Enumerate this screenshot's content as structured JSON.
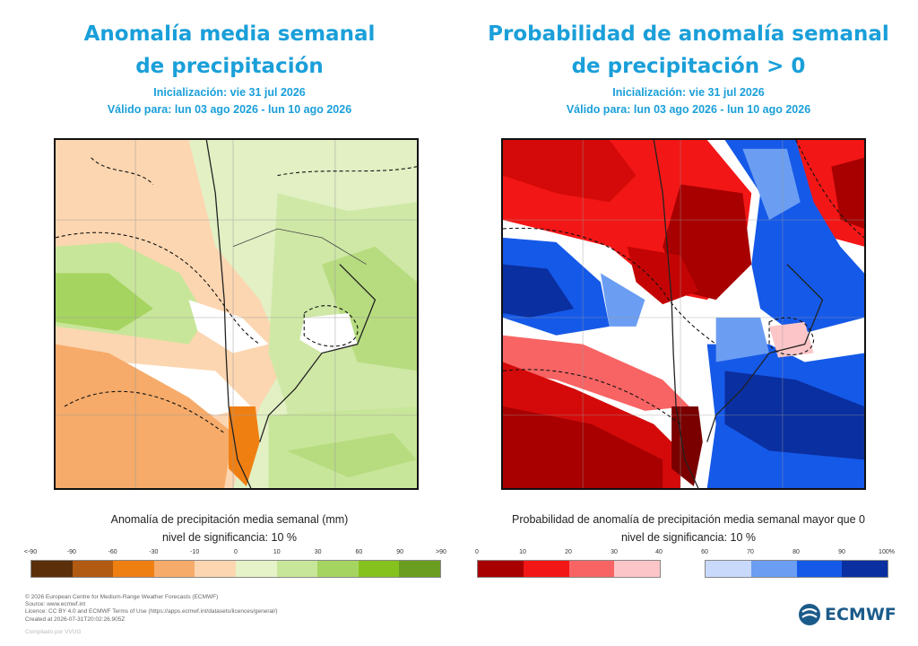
{
  "left": {
    "title_line1": "Anomalía media semanal",
    "title_line2": "de precipitación",
    "init": "Inicialización: vie 31 jul 2026",
    "valid": "Válido para: lun 03 ago 2026 - lun 10 ago 2026",
    "caption": "Anomalía de precipitación media semanal (mm)",
    "significance": "nivel de significancia: 10 %",
    "legend_ticks": [
      "<-90",
      "-90",
      "-60",
      "-30",
      "-10",
      "0",
      "10",
      "30",
      "60",
      "90",
      ">90"
    ],
    "legend_colors": [
      "#5a2f0a",
      "#b05a12",
      "#f07f12",
      "#f6ab6a",
      "#fcd6b0",
      "#e6f2c8",
      "#c8e69a",
      "#a6d460",
      "#86c21e",
      "#6b9e20",
      "#4f7a14"
    ]
  },
  "right": {
    "title_line1": "Probabilidad de anomalía semanal",
    "title_line2": "de precipitación > 0",
    "init": "Inicialización: vie 31 jul 2026",
    "valid": "Válido para: lun 03 ago 2026 - lun 10 ago 2026",
    "caption": "Probabilidad de anomalía de precipitación media semanal mayor que 0",
    "significance": "nivel de significancia: 10 %",
    "legend_ticks": [
      "0",
      "10",
      "20",
      "30",
      "40",
      "60",
      "70",
      "80",
      "90",
      "100%"
    ],
    "legend_colors_red": [
      "#a80000",
      "#f31616",
      "#f86464",
      "#fcc6c8"
    ],
    "legend_colors_blue": [
      "#c9d9fb",
      "#6b9ef2",
      "#1559e8",
      "#0a2fa0"
    ]
  },
  "credits": {
    "line1": "© 2026 European Centre for Medium-Range Weather Forecasts (ECMWF)",
    "line2": "Source: www.ecmwf.int",
    "line3": "Licence: CC BY 4.0 and ECMWF Terms of Use (https://apps.ecmwf.int/datasets/licences/general/)",
    "line4": "Created at 2026-07-31T20:02:26.905Z",
    "line5": "Compilado por VVUG"
  },
  "logo_text": "ECMWF"
}
